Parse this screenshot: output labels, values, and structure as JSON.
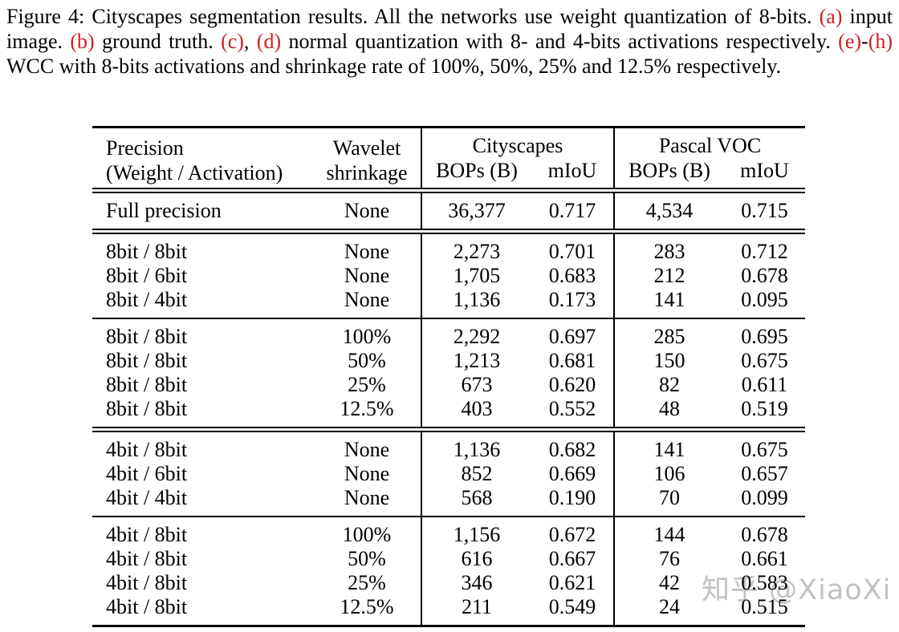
{
  "caption": {
    "accent_color": "#cc2222",
    "segments": [
      {
        "text": "Figure 4: Cityscapes segmentation results. All the networks use weight quantization of 8-bits. ",
        "red": false
      },
      {
        "text": "(a)",
        "red": true
      },
      {
        "text": " input image. ",
        "red": false
      },
      {
        "text": "(b)",
        "red": true
      },
      {
        "text": " ground truth. ",
        "red": false
      },
      {
        "text": "(c)",
        "red": true
      },
      {
        "text": ", ",
        "red": false
      },
      {
        "text": "(d)",
        "red": true
      },
      {
        "text": " normal quantization with 8- and 4-bits activations respectively. ",
        "red": false
      },
      {
        "text": "(e)",
        "red": true
      },
      {
        "text": "-",
        "red": false
      },
      {
        "text": "(h)",
        "red": true
      },
      {
        "text": " WCC with 8-bits activations and shrinkage rate of 100%, 50%, 25% and 12.5% respectively.",
        "red": false
      }
    ]
  },
  "table": {
    "header": {
      "col1_line1": "Precision",
      "col1_line2": "(Weight / Activation)",
      "col2_line1": "Wavelet",
      "col2_line2": "shrinkage",
      "group1": "Cityscapes",
      "group2": "Pascal VOC",
      "sub_bops": "BOPs (B)",
      "sub_miou": "mIoU"
    },
    "sections": [
      {
        "name": "full-precision",
        "rows": [
          [
            "Full precision",
            "None",
            "36,377",
            "0.717",
            "4,534",
            "0.715"
          ]
        ]
      },
      {
        "name": "8bit-no-shrinkage",
        "rows": [
          [
            "8bit / 8bit",
            "None",
            "2,273",
            "0.701",
            "283",
            "0.712"
          ],
          [
            "8bit / 6bit",
            "None",
            "1,705",
            "0.683",
            "212",
            "0.678"
          ],
          [
            "8bit / 4bit",
            "None",
            "1,136",
            "0.173",
            "141",
            "0.095"
          ]
        ]
      },
      {
        "name": "8bit-wcc-shrinkage",
        "rows": [
          [
            "8bit / 8bit",
            "100%",
            "2,292",
            "0.697",
            "285",
            "0.695"
          ],
          [
            "8bit / 8bit",
            "50%",
            "1,213",
            "0.681",
            "150",
            "0.675"
          ],
          [
            "8bit / 8bit",
            "25%",
            "673",
            "0.620",
            "82",
            "0.611"
          ],
          [
            "8bit / 8bit",
            "12.5%",
            "403",
            "0.552",
            "48",
            "0.519"
          ]
        ]
      },
      {
        "name": "4bit-no-shrinkage",
        "rows": [
          [
            "4bit / 8bit",
            "None",
            "1,136",
            "0.682",
            "141",
            "0.675"
          ],
          [
            "4bit / 6bit",
            "None",
            "852",
            "0.669",
            "106",
            "0.657"
          ],
          [
            "4bit / 4bit",
            "None",
            "568",
            "0.190",
            "70",
            "0.099"
          ]
        ]
      },
      {
        "name": "4bit-wcc-shrinkage",
        "rows": [
          [
            "4bit / 8bit",
            "100%",
            "1,156",
            "0.672",
            "144",
            "0.678"
          ],
          [
            "4bit / 8bit",
            "50%",
            "616",
            "0.667",
            "76",
            "0.661"
          ],
          [
            "4bit / 8bit",
            "25%",
            "346",
            "0.621",
            "42",
            "0.583"
          ],
          [
            "4bit / 8bit",
            "12.5%",
            "211",
            "0.549",
            "24",
            "0.515"
          ]
        ]
      }
    ]
  },
  "watermark": {
    "text": "知乎 @XiaoXi",
    "color": "#c2c2c2"
  }
}
